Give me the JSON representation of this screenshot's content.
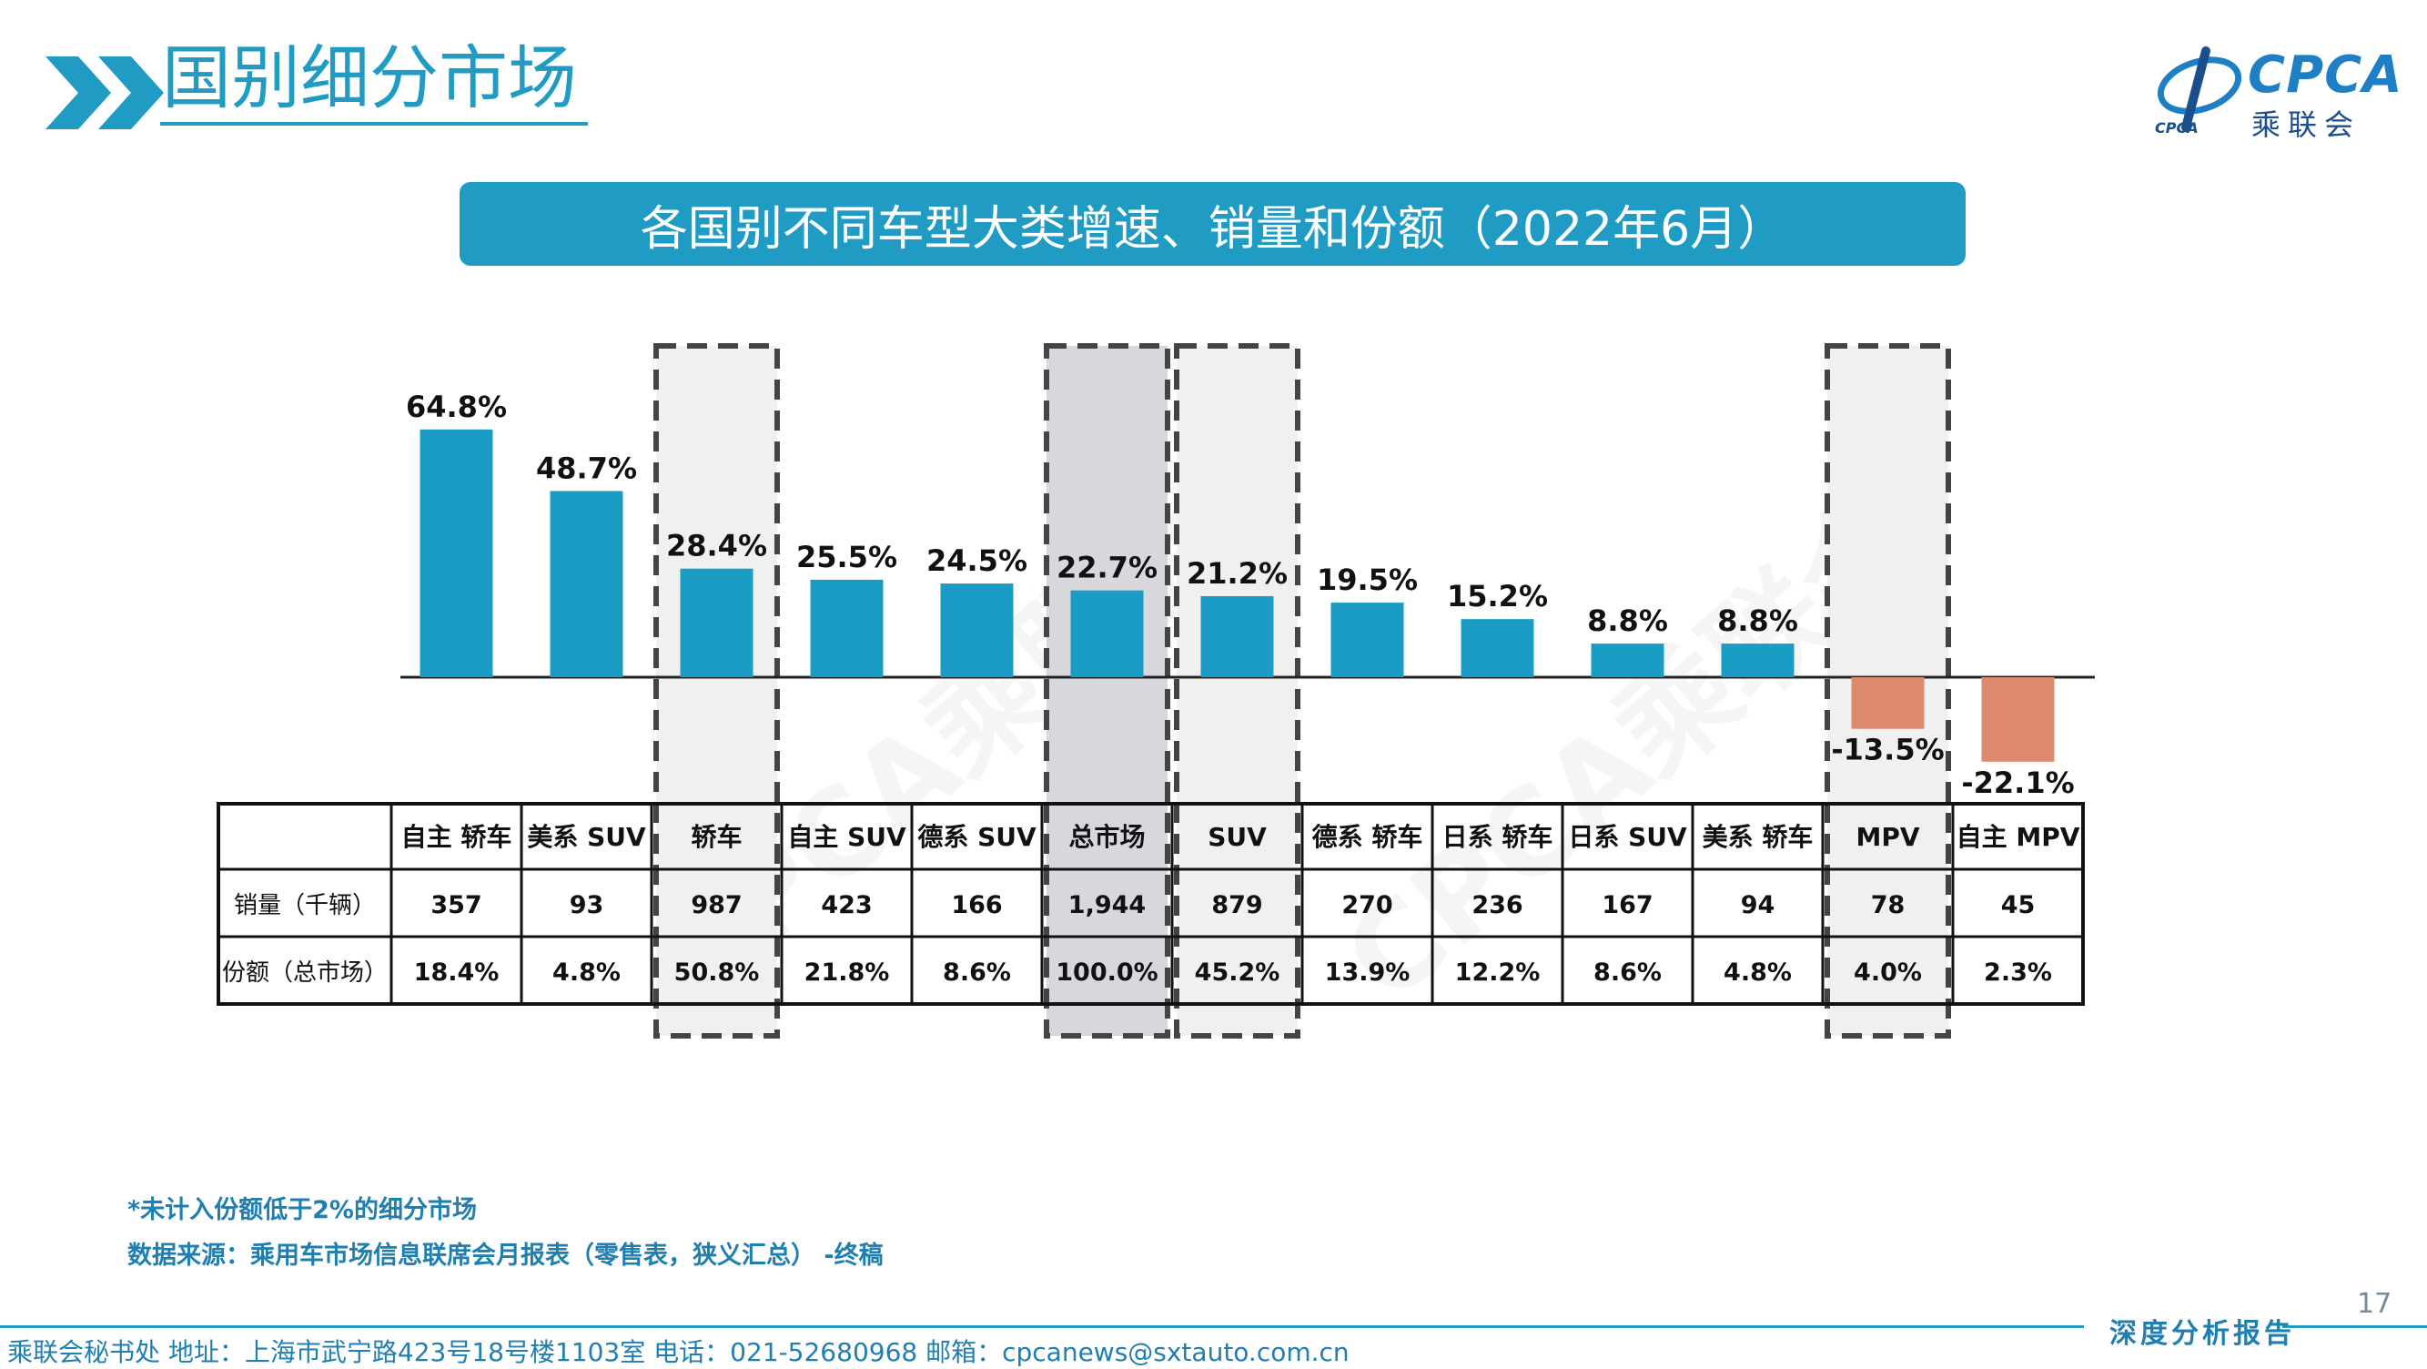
{
  "header": {
    "title": "国别细分市场",
    "logo_text": "CPCA",
    "logo_sub": "乘联会",
    "logo_mark": "CPCA"
  },
  "banner": {
    "title": "各国别不同车型大类增速、销量和份额（2022年6月）"
  },
  "colors": {
    "accent": "#1f9bc4",
    "positive_bar": "#1a9cc4",
    "negative_bar": "#de8a6e",
    "highlight_fill": "#d7d7de"
  },
  "chart_data": {
    "type": "bar",
    "categories": [
      "自主 轿车",
      "美系 SUV",
      "轿车",
      "自主 SUV",
      "德系 SUV",
      "总市场",
      "SUV",
      "德系 轿车",
      "日系 轿车",
      "日系 SUV",
      "美系 轿车",
      "MPV",
      "自主 MPV"
    ],
    "series": [
      {
        "values": [
          64.8,
          48.7,
          28.4,
          25.5,
          24.5,
          22.7,
          21.2,
          19.5,
          15.2,
          8.8,
          8.8,
          -13.5,
          -22.1
        ]
      }
    ],
    "value_labels": [
      "64.8%",
      "48.7%",
      "28.4%",
      "25.5%",
      "24.5%",
      "22.7%",
      "21.2%",
      "19.5%",
      "15.2%",
      "8.8%",
      "8.8%",
      "-13.5%",
      "-22.1%"
    ],
    "highlighted_categories": [
      "轿车",
      "总市场",
      "SUV",
      "MPV"
    ],
    "shaded_category": "总市场",
    "ylim": [
      -25,
      70
    ],
    "table": {
      "rows": [
        {
          "label": "销量（千辆）",
          "values": [
            "357",
            "93",
            "987",
            "423",
            "166",
            "1,944",
            "879",
            "270",
            "236",
            "167",
            "94",
            "78",
            "45"
          ]
        },
        {
          "label": "份额（总市场）",
          "values": [
            "18.4%",
            "4.8%",
            "50.8%",
            "21.8%",
            "8.6%",
            "100.0%",
            "45.2%",
            "13.9%",
            "12.2%",
            "8.6%",
            "4.8%",
            "4.0%",
            "2.3%"
          ]
        }
      ]
    }
  },
  "watermark": "CPCA乘联会",
  "notes": {
    "line1": "*未计入份额低于2%的细分市场",
    "line2": "数据来源：乘用车市场信息联席会月报表（零售表，狭义汇总） -终稿"
  },
  "page_number": "17",
  "footer": {
    "text": "乘联会秘书处   地址：上海市武宁路423号18号楼1103室  电话：021-52680968   邮箱：cpcanews@sxtauto.com.cn",
    "right": "深度分析报告"
  }
}
